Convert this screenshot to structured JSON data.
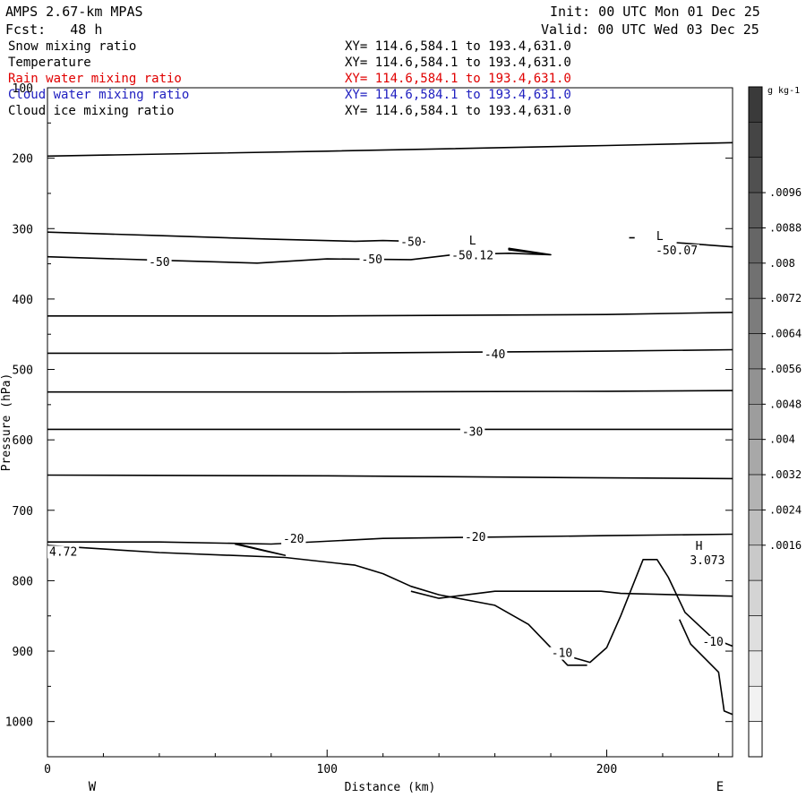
{
  "header": {
    "model": "AMPS 2.67-km MPAS",
    "init": "Init: 00 UTC Mon 01 Dec 25",
    "fcst": "Fcst:   48 h",
    "valid": "Valid: 00 UTC Wed 03 Dec 25"
  },
  "fields": [
    {
      "name": "Snow mixing ratio",
      "xy": "XY= 114.6,584.1 to 193.4,631.0",
      "color": "#000000"
    },
    {
      "name": "Temperature",
      "xy": "XY= 114.6,584.1 to 193.4,631.0",
      "color": "#000000"
    },
    {
      "name": "Rain water mixing ratio",
      "xy": "XY= 114.6,584.1 to 193.4,631.0",
      "color": "#e00000"
    },
    {
      "name": "Cloud water mixing ratio",
      "xy": "XY= 114.6,584.1 to 193.4,631.0",
      "color": "#2020c0"
    },
    {
      "name": "Cloud ice mixing ratio",
      "xy": "XY= 114.6,584.1 to 193.4,631.0",
      "color": "#000000"
    }
  ],
  "chart_data": {
    "type": "line",
    "title": "",
    "xlabel": "Distance (km)",
    "ylabel": "Pressure (hPa)",
    "xlim": [
      0,
      245
    ],
    "ylim": [
      1050,
      100
    ],
    "y_axis_inverted": true,
    "x_ticks": [
      0,
      100,
      200
    ],
    "y_ticks": [
      100,
      200,
      300,
      400,
      500,
      600,
      700,
      800,
      900,
      1000
    ],
    "x_end_labels": {
      "left": "W",
      "right": "E"
    },
    "grid": false,
    "series": [
      {
        "points": [
          [
            0,
            197
          ],
          [
            100,
            190
          ],
          [
            200,
            182
          ],
          [
            245,
            178
          ]
        ]
      },
      {
        "points": [
          [
            0,
            305
          ],
          [
            40,
            310
          ],
          [
            80,
            315
          ],
          [
            110,
            318
          ],
          [
            120,
            317
          ],
          [
            130,
            318
          ],
          [
            135,
            319
          ]
        ]
      },
      {
        "points": [
          [
            0,
            340
          ],
          [
            40,
            345
          ],
          [
            75,
            349
          ],
          [
            100,
            343
          ],
          [
            130,
            344
          ],
          [
            145,
            337
          ],
          [
            165,
            335
          ],
          [
            180,
            337
          ],
          [
            165,
            330
          ],
          [
            165,
            328
          ],
          [
            180,
            337
          ]
        ]
      },
      {
        "points": [
          [
            208,
            313
          ],
          [
            210,
            313
          ]
        ]
      },
      {
        "points": [
          [
            225,
            320
          ],
          [
            245,
            326
          ],
          [
            235,
            323
          ]
        ]
      },
      {
        "points": [
          [
            0,
            424
          ],
          [
            100,
            424
          ],
          [
            200,
            422
          ],
          [
            245,
            419
          ]
        ]
      },
      {
        "points": [
          [
            0,
            477
          ],
          [
            100,
            477
          ],
          [
            200,
            474
          ],
          [
            245,
            472
          ]
        ]
      },
      {
        "points": [
          [
            0,
            532
          ],
          [
            100,
            532
          ],
          [
            200,
            531
          ],
          [
            245,
            530
          ]
        ]
      },
      {
        "points": [
          [
            0,
            585
          ],
          [
            100,
            585
          ],
          [
            200,
            585
          ],
          [
            245,
            585
          ]
        ]
      },
      {
        "points": [
          [
            0,
            650
          ],
          [
            100,
            651
          ],
          [
            200,
            654
          ],
          [
            245,
            655
          ]
        ]
      },
      {
        "points": [
          [
            0,
            745
          ],
          [
            40,
            745
          ],
          [
            80,
            748
          ],
          [
            120,
            740
          ],
          [
            160,
            738
          ],
          [
            200,
            736
          ],
          [
            245,
            734
          ]
        ]
      },
      {
        "points": [
          [
            67,
            748
          ],
          [
            78,
            758
          ],
          [
            85,
            764
          ],
          [
            68,
            748
          ]
        ]
      },
      {
        "points": [
          [
            0,
            750
          ],
          [
            40,
            760
          ],
          [
            85,
            767
          ],
          [
            110,
            778
          ],
          [
            120,
            790
          ],
          [
            130,
            808
          ],
          [
            140,
            820
          ],
          [
            160,
            835
          ],
          [
            172,
            862
          ],
          [
            180,
            895
          ],
          [
            186,
            920
          ],
          [
            193,
            920
          ]
        ]
      },
      {
        "points": [
          [
            130,
            815
          ],
          [
            140,
            825
          ],
          [
            146,
            822
          ],
          [
            160,
            815
          ],
          [
            185,
            815
          ],
          [
            198,
            815
          ],
          [
            205,
            818
          ],
          [
            245,
            822
          ]
        ]
      },
      {
        "points": [
          [
            180,
            900
          ],
          [
            194,
            916
          ],
          [
            200,
            895
          ],
          [
            205,
            850
          ],
          [
            213,
            770
          ],
          [
            218,
            770
          ],
          [
            222,
            795
          ],
          [
            228,
            845
          ],
          [
            238,
            882
          ],
          [
            245,
            893
          ]
        ]
      },
      {
        "points": [
          [
            226,
            855
          ],
          [
            230,
            890
          ],
          [
            240,
            930
          ],
          [
            242,
            985
          ],
          [
            245,
            990
          ]
        ]
      }
    ],
    "contour_labels": [
      "-50",
      "-50",
      "-50",
      "-50.12",
      "-50.07",
      "-40",
      "-30",
      "-20",
      "-20",
      "-10",
      "-10",
      "L",
      "L",
      "H",
      "3.073",
      "4.72"
    ],
    "colorbar": {
      "unit": "g kg-1",
      "labels": [
        ".0096",
        ".0088",
        ".008",
        ".0072",
        ".0064",
        ".0056",
        ".0048",
        ".004",
        ".0032",
        ".0024",
        ".0016"
      ],
      "colors": [
        "#3a3a3a",
        "#454545",
        "#505050",
        "#5b5b5b",
        "#666666",
        "#717171",
        "#7c7c7c",
        "#878787",
        "#929292",
        "#9d9d9d",
        "#a8a8a8",
        "#b3b3b3",
        "#bebebe",
        "#c9c9c9",
        "#d4d4d4",
        "#dfdfdf",
        "#e8e8e8",
        "#f2f2f2",
        "#ffffff"
      ]
    }
  }
}
